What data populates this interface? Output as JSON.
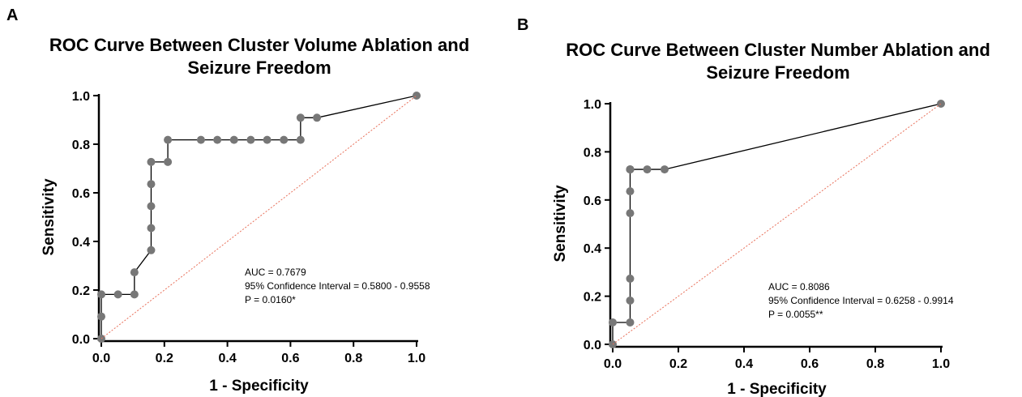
{
  "figure": {
    "panel_labels": [
      "A",
      "B"
    ]
  },
  "chart_data": [
    {
      "type": "line",
      "title": "ROC Curve Between Cluster Volume Ablation and\nSeizure Freedom",
      "xlabel": "1 - Specificity",
      "ylabel": "Sensitivity",
      "xlim": [
        0,
        1
      ],
      "ylim": [
        0,
        1
      ],
      "xticks": [
        "0.0",
        "0.2",
        "0.4",
        "0.6",
        "0.8",
        "1.0"
      ],
      "yticks": [
        "0.0",
        "0.2",
        "0.4",
        "0.6",
        "0.8",
        "1.0"
      ],
      "grid": false,
      "series": [
        {
          "kind": "roc",
          "color": "#000000",
          "marker_color": "#777777",
          "x": [
            0,
            0,
            0,
            0.053,
            0.105,
            0.105,
            0.158,
            0.158,
            0.158,
            0.158,
            0.158,
            0.211,
            0.211,
            0.316,
            0.368,
            0.421,
            0.474,
            0.526,
            0.579,
            0.632,
            0.632,
            0.684,
            1.0
          ],
          "y": [
            0,
            0.091,
            0.182,
            0.182,
            0.182,
            0.273,
            0.364,
            0.455,
            0.545,
            0.636,
            0.727,
            0.727,
            0.818,
            0.818,
            0.818,
            0.818,
            0.818,
            0.818,
            0.818,
            0.818,
            0.909,
            0.909,
            1.0
          ]
        },
        {
          "kind": "reference",
          "color": "#e8705a",
          "x": [
            0,
            1
          ],
          "y": [
            0,
            1
          ]
        }
      ],
      "annotations": [
        "AUC = 0.7679",
        "95% Confidence Interval = 0.5800 -  0.9558",
        "P = 0.0160*"
      ]
    },
    {
      "type": "line",
      "title": "ROC Curve Between Cluster Number Ablation and\nSeizure Freedom",
      "xlabel": "1 - Specificity",
      "ylabel": "Sensitivity",
      "xlim": [
        0,
        1
      ],
      "ylim": [
        0,
        1
      ],
      "xticks": [
        "0.0",
        "0.2",
        "0.4",
        "0.6",
        "0.8",
        "1.0"
      ],
      "yticks": [
        "0.0",
        "0.2",
        "0.4",
        "0.6",
        "0.8",
        "1.0"
      ],
      "grid": false,
      "series": [
        {
          "kind": "roc",
          "color": "#000000",
          "marker_color": "#777777",
          "x": [
            0,
            0,
            0.053,
            0.053,
            0.053,
            0.053,
            0.053,
            0.053,
            0.053,
            0.053,
            0.105,
            0.158,
            1.0
          ],
          "y": [
            0,
            0.091,
            0.091,
            0.182,
            0.273,
            0.545,
            0.636,
            0.727,
            0.727,
            0.727,
            0.727,
            0.727,
            1.0
          ]
        },
        {
          "kind": "reference",
          "color": "#e8705a",
          "x": [
            0,
            1
          ],
          "y": [
            0,
            1
          ]
        }
      ],
      "annotations": [
        "AUC = 0.8086",
        "95% Confidence Interval =  0.6258 - 0.9914",
        "P = 0.0055**"
      ]
    }
  ]
}
